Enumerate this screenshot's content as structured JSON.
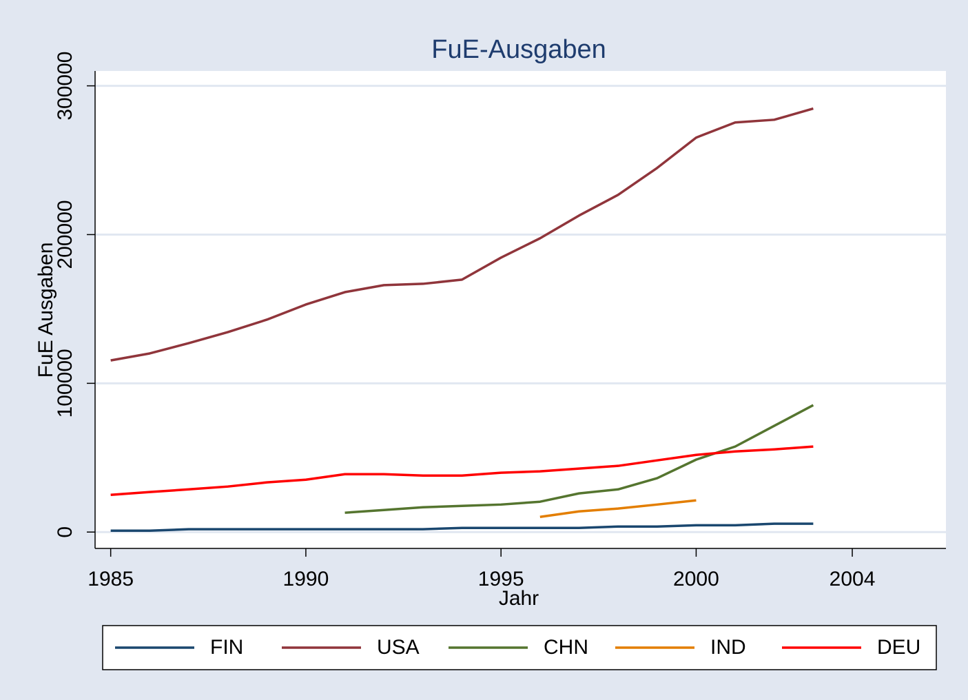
{
  "chart_data": {
    "type": "line",
    "title": "FuE-Ausgaben",
    "xlabel": "Jahr",
    "ylabel": "FuE Ausgaben",
    "x": [
      1985,
      1986,
      1987,
      1988,
      1989,
      1990,
      1991,
      1992,
      1993,
      1994,
      1995,
      1996,
      1997,
      1998,
      1999,
      2000,
      2001,
      2002,
      2003
    ],
    "series": [
      {
        "name": "FIN",
        "color": "#1a476f",
        "values": [
          900,
          900,
          1900,
          1900,
          1900,
          1900,
          1900,
          1900,
          1900,
          2800,
          2800,
          2800,
          2800,
          3700,
          3700,
          4600,
          4600,
          5600,
          5600
        ]
      },
      {
        "name": "USA",
        "color": "#90353b",
        "values": [
          115400,
          120100,
          127000,
          134400,
          142800,
          153000,
          161300,
          166000,
          166900,
          169700,
          184500,
          197500,
          212800,
          226700,
          244800,
          265200,
          275400,
          277200,
          284700
        ]
      },
      {
        "name": "CHN",
        "color": "#55752f",
        "values": [
          null,
          null,
          null,
          null,
          null,
          null,
          13000,
          14800,
          16700,
          17600,
          18500,
          20400,
          26000,
          28700,
          36200,
          48700,
          57500,
          71400,
          85300
        ]
      },
      {
        "name": "IND",
        "color": "#e37e00",
        "values": [
          null,
          null,
          null,
          null,
          null,
          null,
          null,
          null,
          null,
          null,
          null,
          10200,
          13900,
          15800,
          18500,
          21300,
          null,
          null,
          null
        ]
      },
      {
        "name": "DEU",
        "color": "#ff0000",
        "values": [
          25000,
          26900,
          28700,
          30600,
          33400,
          35200,
          38900,
          38900,
          38000,
          38000,
          39900,
          40800,
          42700,
          44500,
          48200,
          51900,
          54200,
          55600,
          57500
        ]
      }
    ],
    "xlim": [
      1984.6,
      2006.4
    ],
    "xticks": [
      1985,
      1990,
      1995,
      2000,
      2004
    ],
    "ylim": [
      -11000,
      310000
    ],
    "yticks": [
      0,
      100000,
      200000,
      300000
    ],
    "grid": true
  }
}
